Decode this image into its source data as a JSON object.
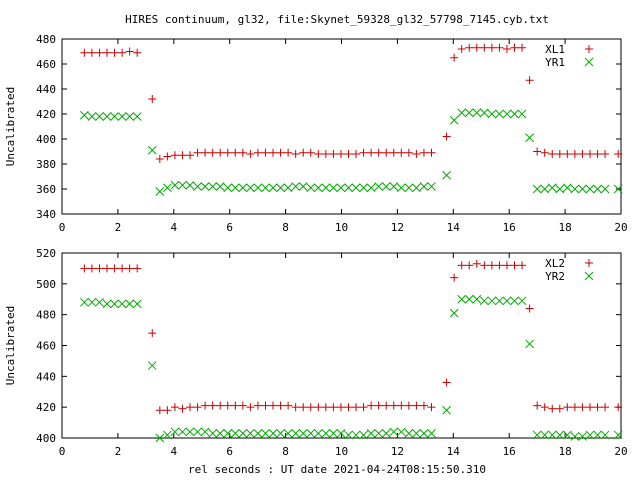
{
  "title": "HIRES continuum, gl32, file:Skynet_59328_gl32_57798_7145.cyb.txt",
  "xlabel": "rel seconds : UT date 2021-04-24T08:15:50.310",
  "colors": {
    "plus": "#cc0000",
    "cross": "#00aa00"
  },
  "chart_data": [
    {
      "type": "scatter",
      "ylabel": "Uncalibrated",
      "xlim": [
        0,
        20
      ],
      "ylim": [
        340,
        480
      ],
      "xticks": [
        0,
        2,
        4,
        6,
        8,
        10,
        12,
        14,
        16,
        18,
        20
      ],
      "yticks": [
        340,
        360,
        380,
        400,
        420,
        440,
        460,
        480
      ],
      "legend_position": "top-right",
      "series": [
        {
          "name": "XL1",
          "marker": "plus",
          "color": "#cc0000",
          "x": [
            0.8,
            1.07,
            1.34,
            1.61,
            1.88,
            2.15,
            2.42,
            2.69,
            3.23,
            3.5,
            3.77,
            4.04,
            4.31,
            4.58,
            4.85,
            5.12,
            5.39,
            5.66,
            5.93,
            6.2,
            6.47,
            6.74,
            7.01,
            7.28,
            7.55,
            7.82,
            8.09,
            8.36,
            8.63,
            8.9,
            9.17,
            9.44,
            9.71,
            9.98,
            10.25,
            10.52,
            10.79,
            11.06,
            11.33,
            11.6,
            11.87,
            12.14,
            12.41,
            12.68,
            12.95,
            13.22,
            13.76,
            14.03,
            14.3,
            14.57,
            14.84,
            15.11,
            15.38,
            15.65,
            15.92,
            16.19,
            16.46,
            16.73,
            17.0,
            17.27,
            17.54,
            17.81,
            18.08,
            18.35,
            18.62,
            18.89,
            19.16,
            19.43,
            19.9
          ],
          "y": [
            469,
            469,
            469,
            469,
            469,
            469,
            470,
            469,
            432,
            384,
            386,
            387,
            387,
            387,
            389,
            389,
            389,
            389,
            389,
            389,
            389,
            388,
            389,
            389,
            389,
            389,
            389,
            388,
            389,
            389,
            388,
            388,
            388,
            388,
            388,
            388,
            389,
            389,
            389,
            389,
            389,
            389,
            389,
            388,
            389,
            389,
            402,
            465,
            472,
            473,
            473,
            473,
            473,
            473,
            472,
            473,
            473,
            447,
            390,
            389,
            388,
            388,
            388,
            388,
            388,
            388,
            388,
            388,
            388
          ]
        },
        {
          "name": "YR1",
          "marker": "cross",
          "color": "#00aa00",
          "x": [
            0.8,
            1.07,
            1.34,
            1.61,
            1.88,
            2.15,
            2.42,
            2.69,
            3.23,
            3.5,
            3.77,
            4.04,
            4.31,
            4.58,
            4.85,
            5.12,
            5.39,
            5.66,
            5.93,
            6.2,
            6.47,
            6.74,
            7.01,
            7.28,
            7.55,
            7.82,
            8.09,
            8.36,
            8.63,
            8.9,
            9.17,
            9.44,
            9.71,
            9.98,
            10.25,
            10.52,
            10.79,
            11.06,
            11.33,
            11.6,
            11.87,
            12.14,
            12.41,
            12.68,
            12.95,
            13.22,
            13.76,
            14.03,
            14.3,
            14.57,
            14.84,
            15.11,
            15.38,
            15.65,
            15.92,
            16.19,
            16.46,
            16.73,
            17.0,
            17.27,
            17.54,
            17.81,
            18.08,
            18.35,
            18.62,
            18.89,
            19.16,
            19.43,
            19.9
          ],
          "y": [
            419,
            418,
            418,
            418,
            418,
            418,
            418,
            418,
            391,
            358,
            361,
            363,
            363,
            363,
            362,
            362,
            362,
            362,
            361,
            361,
            361,
            361,
            361,
            361,
            361,
            361,
            361,
            362,
            362,
            361,
            361,
            361,
            361,
            361,
            361,
            361,
            361,
            361,
            362,
            362,
            362,
            361,
            361,
            361,
            362,
            362,
            371,
            415,
            421,
            421,
            421,
            421,
            420,
            420,
            420,
            420,
            420,
            401,
            360,
            360,
            361,
            360,
            361,
            360,
            360,
            360,
            360,
            360,
            360
          ]
        }
      ]
    },
    {
      "type": "scatter",
      "ylabel": "Uncalibrated",
      "xlim": [
        0,
        20
      ],
      "ylim": [
        400,
        520
      ],
      "xticks": [
        0,
        2,
        4,
        6,
        8,
        10,
        12,
        14,
        16,
        18,
        20
      ],
      "yticks": [
        400,
        420,
        440,
        460,
        480,
        500,
        520
      ],
      "legend_position": "top-right",
      "series": [
        {
          "name": "XL2",
          "marker": "plus",
          "color": "#cc0000",
          "x": [
            0.8,
            1.07,
            1.34,
            1.61,
            1.88,
            2.15,
            2.42,
            2.69,
            3.23,
            3.5,
            3.77,
            4.04,
            4.31,
            4.58,
            4.85,
            5.12,
            5.39,
            5.66,
            5.93,
            6.2,
            6.47,
            6.74,
            7.01,
            7.28,
            7.55,
            7.82,
            8.09,
            8.36,
            8.63,
            8.9,
            9.17,
            9.44,
            9.71,
            9.98,
            10.25,
            10.52,
            10.79,
            11.06,
            11.33,
            11.6,
            11.87,
            12.14,
            12.41,
            12.68,
            12.95,
            13.22,
            13.76,
            14.03,
            14.3,
            14.57,
            14.84,
            15.11,
            15.38,
            15.65,
            15.92,
            16.19,
            16.46,
            16.73,
            17.0,
            17.27,
            17.54,
            17.81,
            18.08,
            18.35,
            18.62,
            18.89,
            19.16,
            19.43,
            19.9
          ],
          "y": [
            510,
            510,
            510,
            510,
            510,
            510,
            510,
            510,
            468,
            418,
            418,
            420,
            419,
            420,
            420,
            421,
            421,
            421,
            421,
            421,
            421,
            420,
            421,
            421,
            421,
            421,
            421,
            420,
            420,
            420,
            420,
            420,
            420,
            420,
            420,
            420,
            420,
            421,
            421,
            421,
            421,
            421,
            421,
            421,
            421,
            420,
            436,
            504,
            512,
            512,
            513,
            512,
            512,
            512,
            512,
            512,
            512,
            484,
            421,
            420,
            419,
            419,
            420,
            420,
            420,
            420,
            420,
            420,
            420
          ]
        },
        {
          "name": "YR2",
          "marker": "cross",
          "color": "#00aa00",
          "x": [
            0.8,
            1.07,
            1.34,
            1.61,
            1.88,
            2.15,
            2.42,
            2.69,
            3.23,
            3.5,
            3.77,
            4.04,
            4.31,
            4.58,
            4.85,
            5.12,
            5.39,
            5.66,
            5.93,
            6.2,
            6.47,
            6.74,
            7.01,
            7.28,
            7.55,
            7.82,
            8.09,
            8.36,
            8.63,
            8.9,
            9.17,
            9.44,
            9.71,
            9.98,
            10.25,
            10.52,
            10.79,
            11.06,
            11.33,
            11.6,
            11.87,
            12.14,
            12.41,
            12.68,
            12.95,
            13.22,
            13.76,
            14.03,
            14.3,
            14.57,
            14.84,
            15.11,
            15.38,
            15.65,
            15.92,
            16.19,
            16.46,
            16.73,
            17.0,
            17.27,
            17.54,
            17.81,
            18.08,
            18.35,
            18.62,
            18.89,
            19.16,
            19.43,
            19.9
          ],
          "y": [
            488,
            488,
            488,
            487,
            487,
            487,
            487,
            487,
            447,
            400,
            402,
            404,
            404,
            404,
            404,
            404,
            403,
            403,
            403,
            403,
            403,
            403,
            403,
            403,
            403,
            403,
            403,
            403,
            403,
            403,
            403,
            403,
            403,
            403,
            402,
            402,
            402,
            403,
            403,
            403,
            404,
            404,
            403,
            403,
            403,
            403,
            418,
            481,
            490,
            490,
            490,
            489,
            489,
            489,
            489,
            489,
            489,
            461,
            402,
            402,
            402,
            402,
            402,
            401,
            401,
            402,
            402,
            402,
            402
          ]
        }
      ]
    }
  ]
}
